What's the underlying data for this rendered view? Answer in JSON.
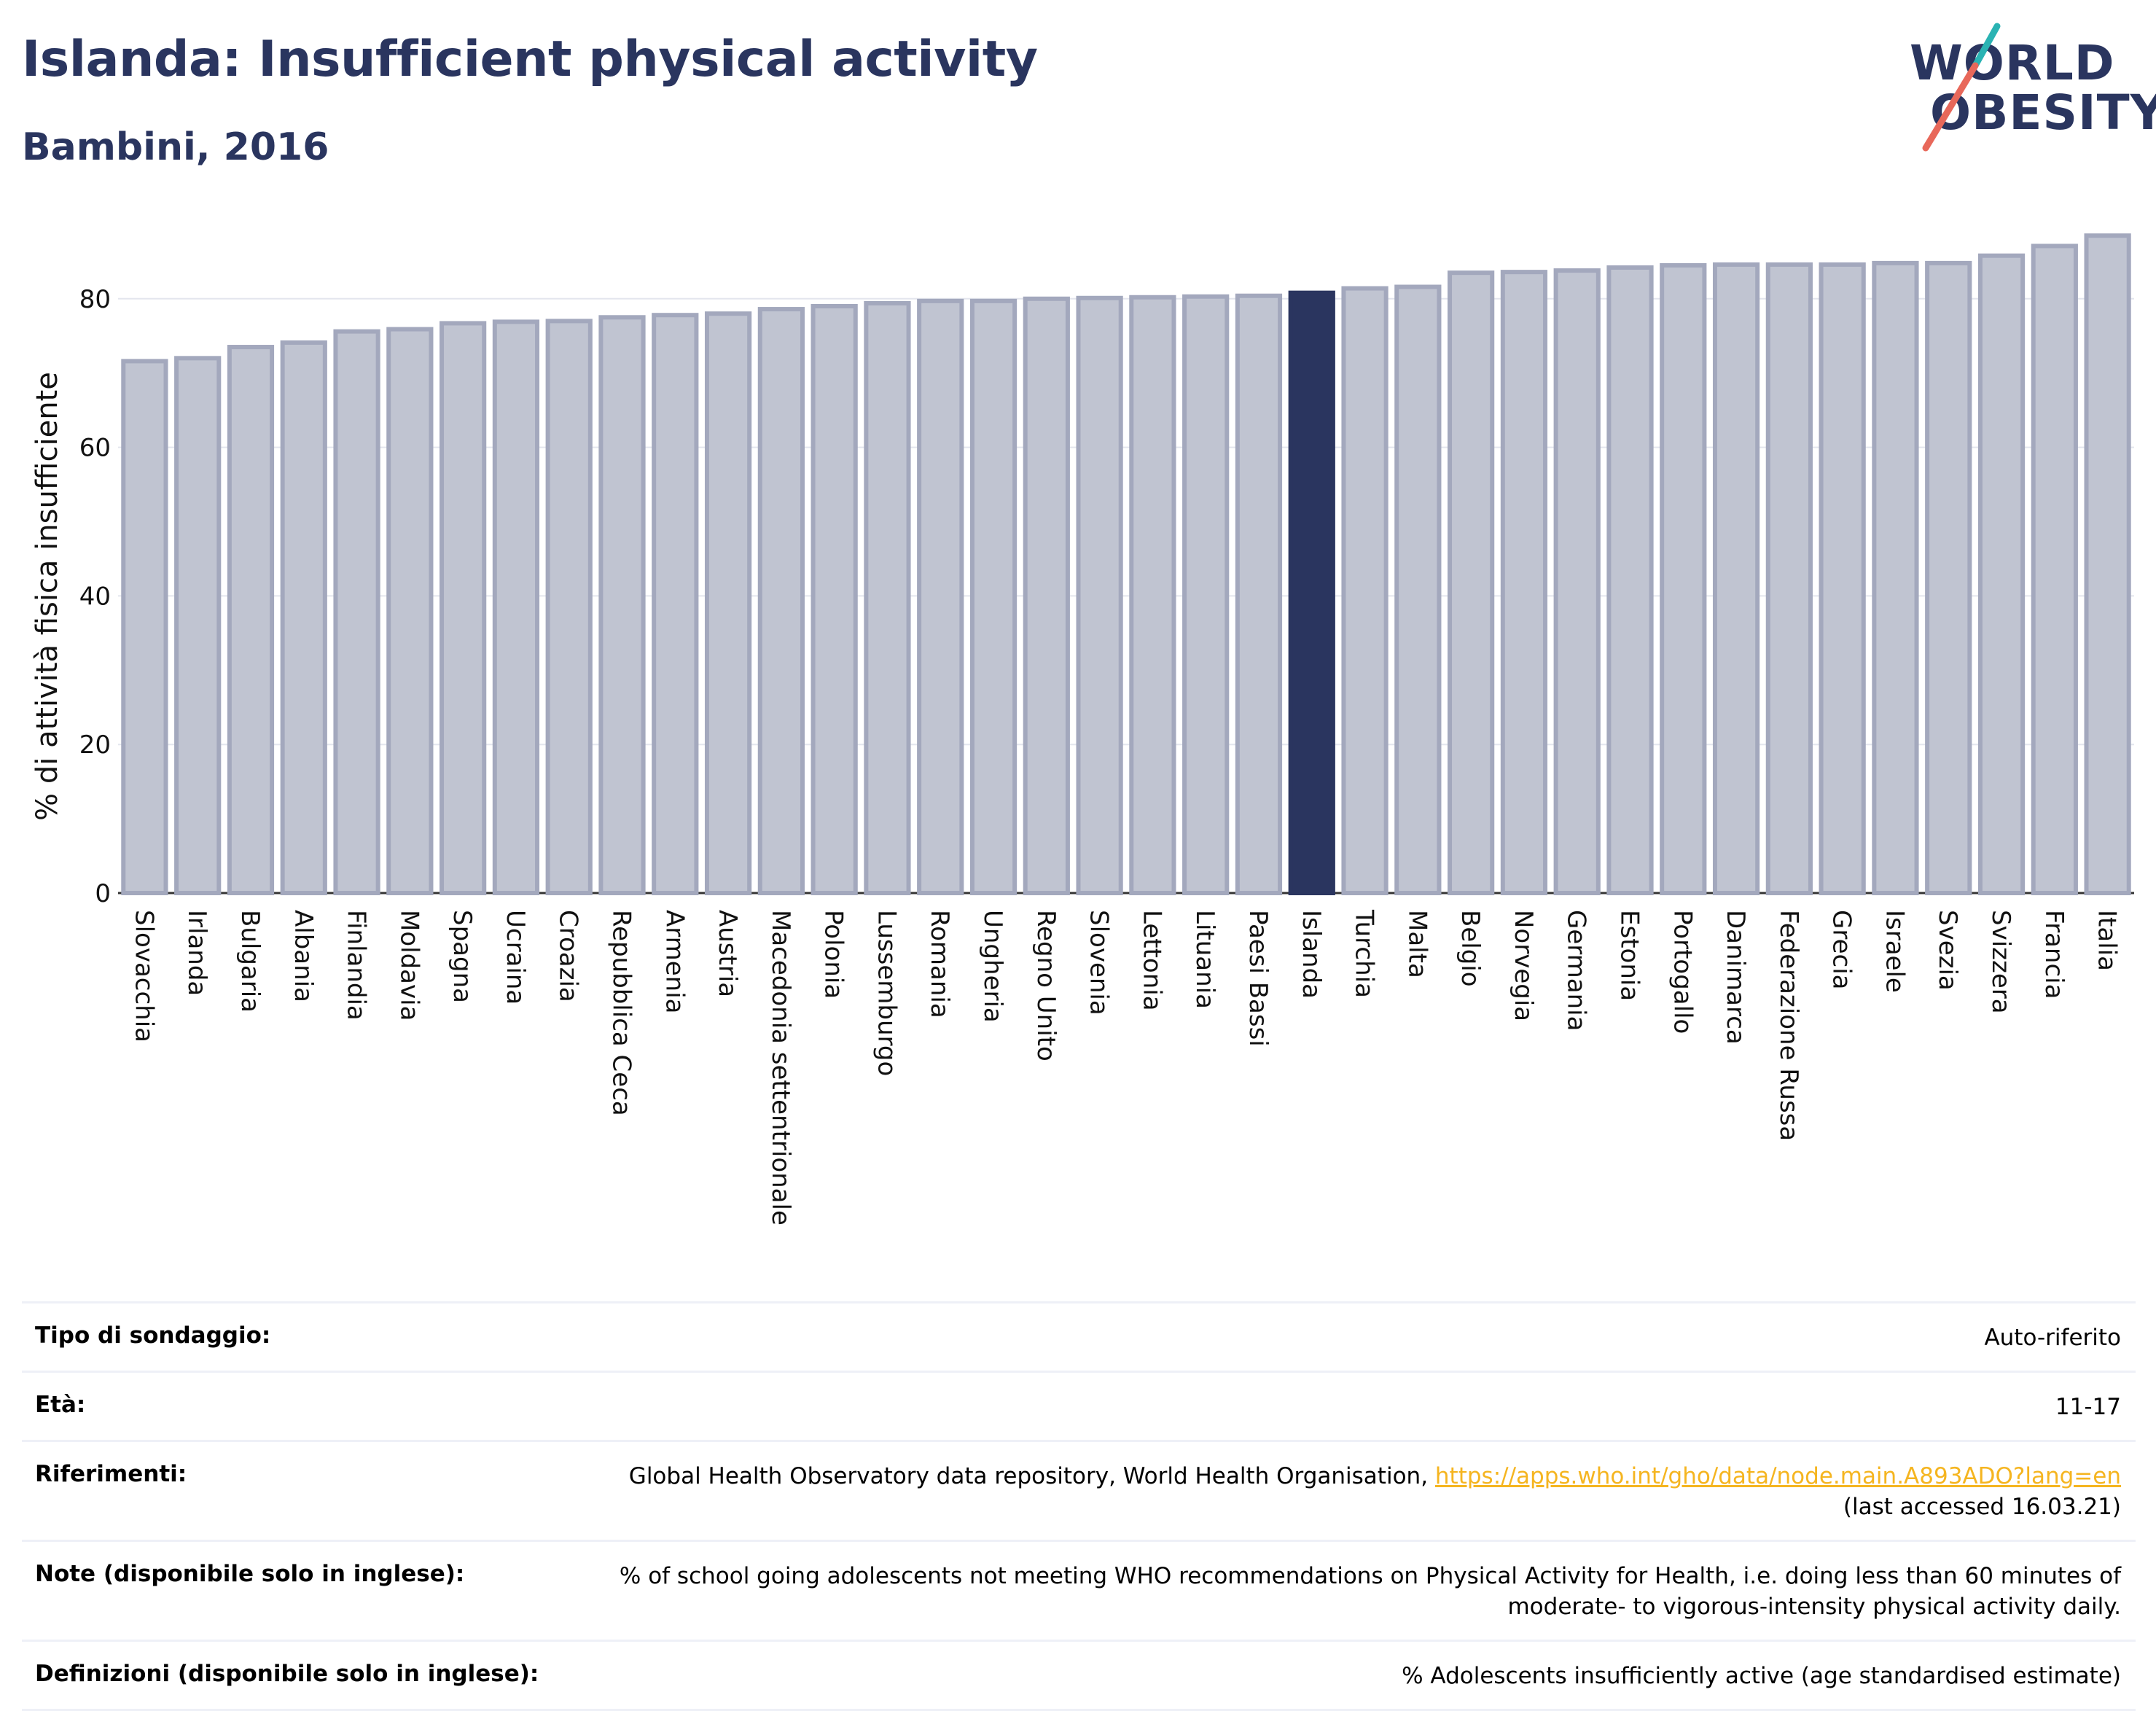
{
  "title": "Islanda: Insufficient physical activity",
  "subtitle": "Bambini, 2016",
  "logo": {
    "line1": "WORLD",
    "line2": "OBESITY"
  },
  "colors": {
    "bar": "#c0c4d1",
    "bar_stroke": "#a3a8bd",
    "highlight": "#2a355f",
    "accent_teal": "#2ab3b3",
    "accent_red": "#e8685a"
  },
  "chart_data": {
    "type": "bar",
    "ylabel": "% di attività fisica insufficiente",
    "ylim": [
      0,
      90
    ],
    "yticks": [
      0,
      20,
      40,
      60,
      80
    ],
    "grid": true,
    "highlight": "Islanda",
    "categories": [
      "Slovacchia",
      "Irlanda",
      "Bulgaria",
      "Albania",
      "Finlandia",
      "Moldavia",
      "Spagna",
      "Ucraina",
      "Croazia",
      "Repubblica Ceca",
      "Armenia",
      "Austria",
      "Macedonia settentrionale",
      "Polonia",
      "Lussemburgo",
      "Romania",
      "Ungheria",
      "Regno Unito",
      "Slovenia",
      "Lettonia",
      "Lituania",
      "Paesi Bassi",
      "Islanda",
      "Turchia",
      "Malta",
      "Belgio",
      "Norvegia",
      "Germania",
      "Estonia",
      "Portogallo",
      "Danimarca",
      "Federazione Russa",
      "Grecia",
      "Israele",
      "Svezia",
      "Svizzera",
      "Francia",
      "Italia"
    ],
    "values": [
      71.6,
      72.0,
      73.5,
      74.1,
      75.6,
      75.9,
      76.7,
      76.9,
      77.0,
      77.5,
      77.8,
      78.0,
      78.6,
      79.0,
      79.4,
      79.7,
      79.7,
      80.0,
      80.1,
      80.2,
      80.3,
      80.4,
      80.8,
      81.4,
      81.6,
      83.5,
      83.6,
      83.8,
      84.2,
      84.5,
      84.6,
      84.6,
      84.6,
      84.8,
      84.8,
      85.8,
      87.1,
      88.5
    ]
  },
  "info": [
    {
      "label": "Tipo di sondaggio:",
      "value": "Auto-riferito"
    },
    {
      "label": "Età:",
      "value": "11-17"
    },
    {
      "label": "Riferimenti:",
      "value": "Global Health Observatory data repository, World Health Organisation, ",
      "link": "https://apps.who.int/gho/data/node.main.A893ADO?lang=en",
      "value2": "(last accessed 16.03.21)"
    },
    {
      "label": "Note (disponibile solo in inglese):",
      "value": "% of school going adolescents not meeting WHO recommendations on Physical Activity for Health, i.e. doing less than 60 minutes of",
      "value2": "moderate- to vigorous-intensity physical activity daily."
    },
    {
      "label": "Definizioni (disponibile solo in inglese):",
      "value": "% Adolescents insufficiently active (age standardised estimate)"
    }
  ]
}
